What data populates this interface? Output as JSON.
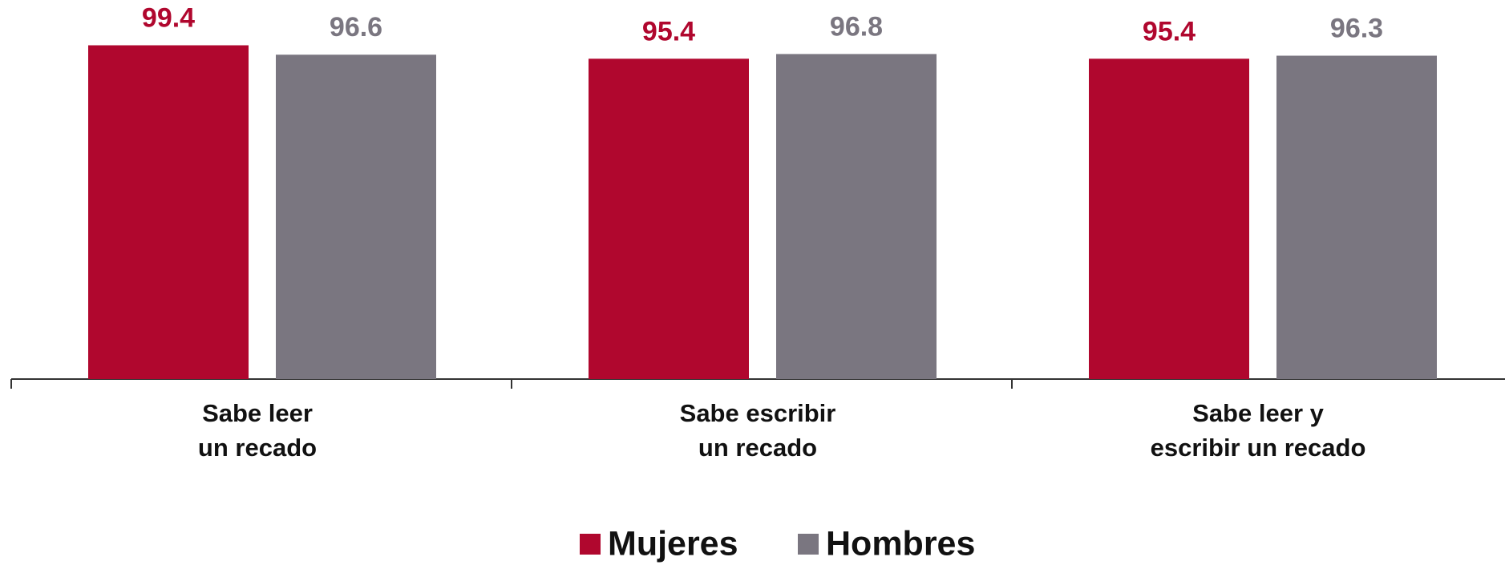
{
  "chart_data": {
    "type": "bar",
    "categories": [
      "Sabe leer\nun recado",
      "Sabe escribir\nun recado",
      "Sabe leer y\nescribir un recado"
    ],
    "series": [
      {
        "name": "Mujeres",
        "color": "#b0072e",
        "values": [
          99.4,
          95.4,
          95.4
        ]
      },
      {
        "name": "Hombres",
        "color": "#7a7680",
        "values": [
          96.6,
          96.8,
          96.3
        ]
      }
    ],
    "ylim": [
      0,
      100
    ]
  }
}
